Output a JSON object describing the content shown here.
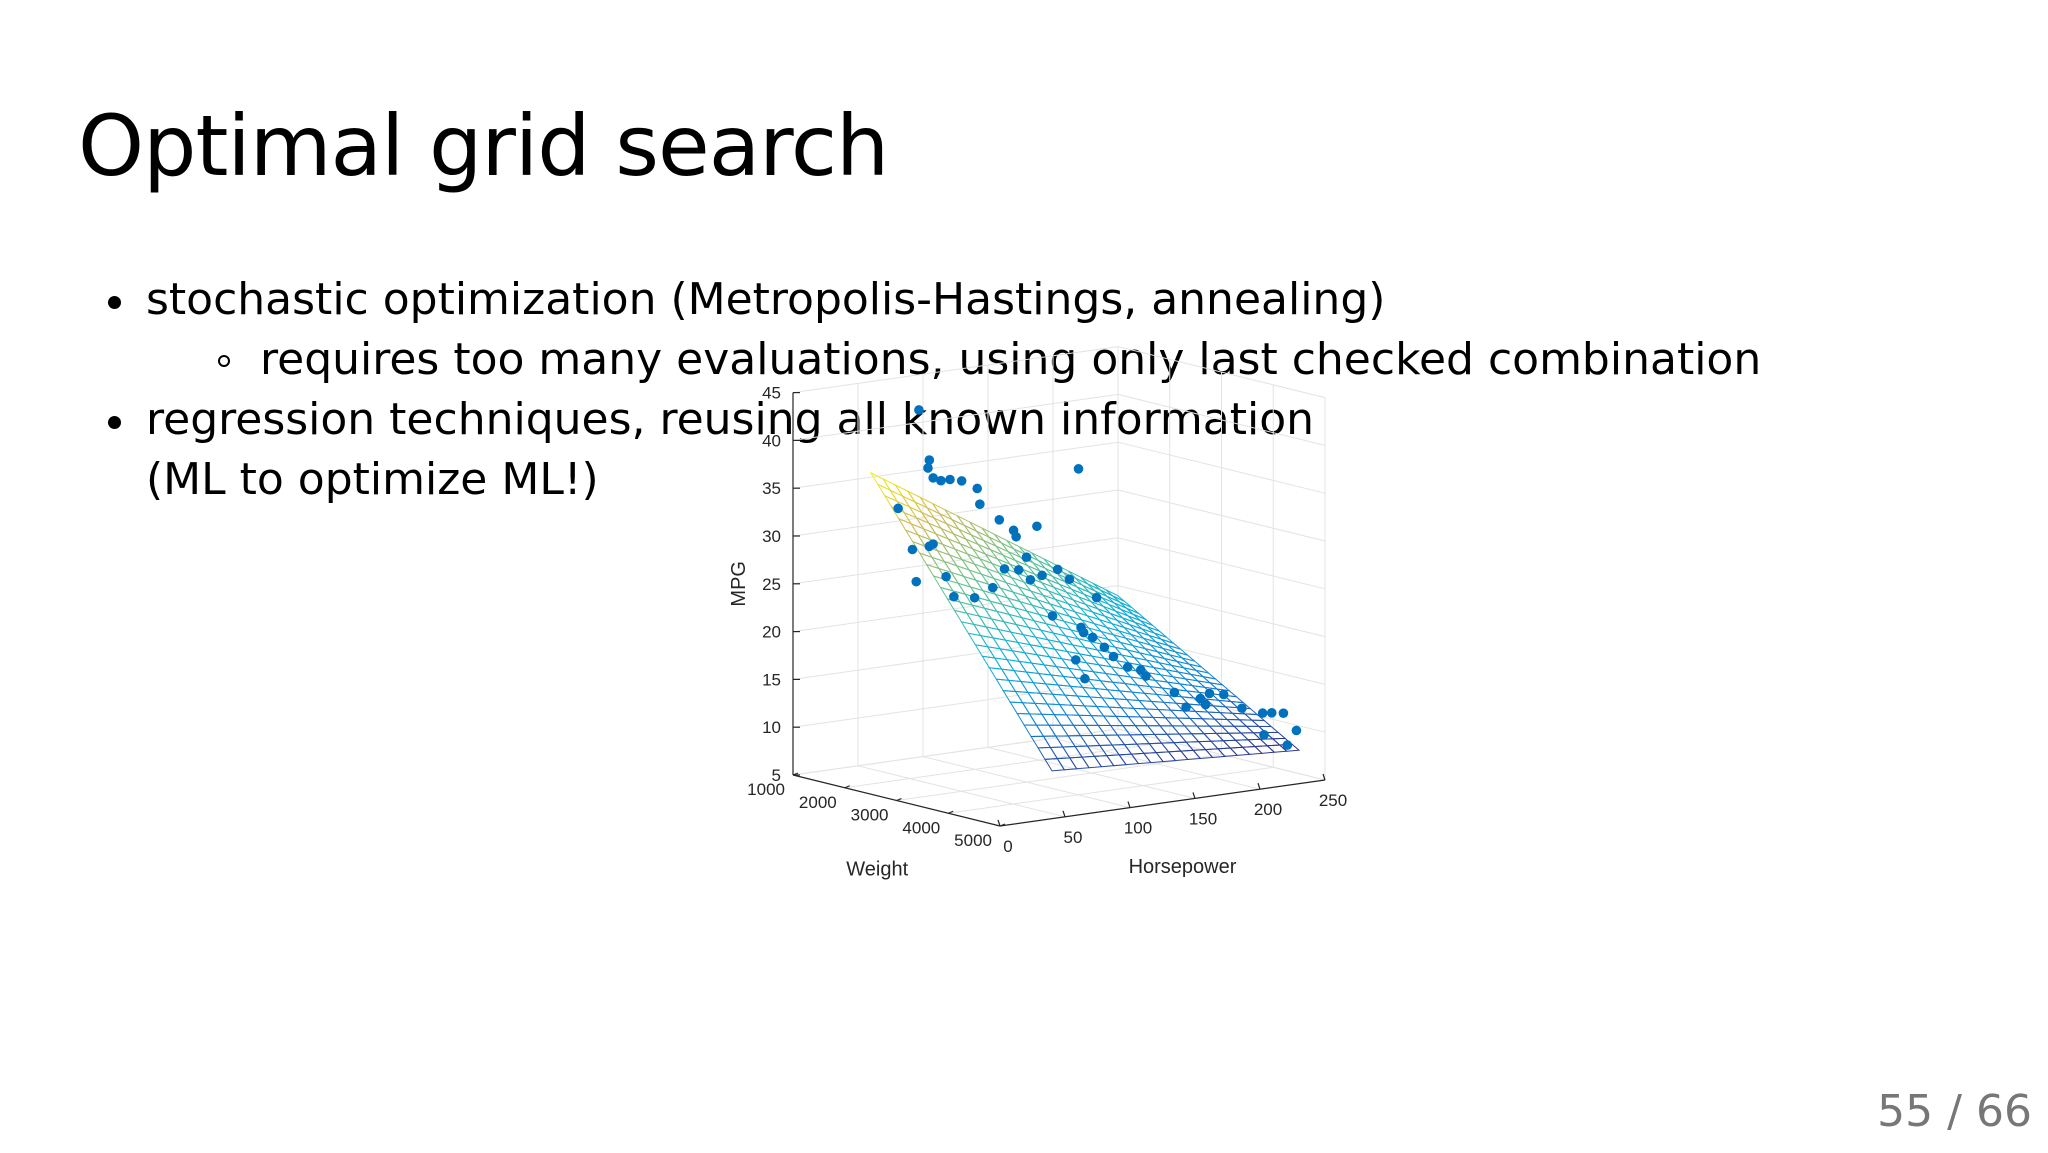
{
  "slide": {
    "title": "Optimal grid search",
    "bullets": [
      {
        "text": "stochastic optimization (Metropolis-Hastings, annealing)",
        "sub": [
          "requires too many evaluations, using only last checked combination"
        ]
      },
      {
        "lines": [
          "regression techniques, reusing all known information",
          "(ML to optimize ML!)"
        ]
      }
    ],
    "pager": {
      "current": "55",
      "separator": "/",
      "total": "66"
    }
  },
  "chart_data": {
    "type": "scatter",
    "subtype": "3d-scatter-with-regression-surface",
    "xlabel": "Weight",
    "ylabel": "Horsepower",
    "zlabel": "MPG",
    "xticks": [
      "1000",
      "2000",
      "3000",
      "4000",
      "5000"
    ],
    "yticks": [
      "0",
      "50",
      "100",
      "150",
      "200",
      "250"
    ],
    "zticks": [
      "5",
      "10",
      "15",
      "20",
      "25",
      "30",
      "35",
      "40",
      "45"
    ],
    "xlim": [
      1000,
      5000
    ],
    "ylim": [
      0,
      250
    ],
    "zlim": [
      5,
      45
    ],
    "grid": true,
    "surface": {
      "colormap": "parula",
      "corner_values": [
        {
          "weight": 1500,
          "horsepower": 40,
          "mpg": 36.5
        },
        {
          "weight": 5000,
          "horsepower": 40,
          "mpg": 10
        },
        {
          "weight": 1500,
          "horsepower": 230,
          "mpg": 20
        },
        {
          "weight": 5000,
          "horsepower": 230,
          "mpg": 8.5
        }
      ]
    },
    "points_color": "#0072bd",
    "points": [
      [
        1800,
        65,
        43
      ],
      [
        1750,
        75,
        37.5
      ],
      [
        1900,
        68,
        37
      ],
      [
        1950,
        70,
        36
      ],
      [
        2050,
        72,
        35.8
      ],
      [
        2150,
        75,
        36
      ],
      [
        2300,
        78,
        36
      ],
      [
        2550,
        80,
        35.5
      ],
      [
        2400,
        88,
        33.5
      ],
      [
        2600,
        95,
        32
      ],
      [
        2750,
        100,
        31
      ],
      [
        2850,
        98,
        30.5
      ],
      [
        2950,
        110,
        31.5
      ],
      [
        3000,
        140,
        37
      ],
      [
        1650,
        55,
        32.7
      ],
      [
        1800,
        60,
        28.5
      ],
      [
        2000,
        65,
        29
      ],
      [
        2150,
        62,
        29.5
      ],
      [
        2200,
        70,
        26
      ],
      [
        2000,
        55,
        25.5
      ],
      [
        2300,
        72,
        24
      ],
      [
        2500,
        80,
        24
      ],
      [
        2600,
        90,
        25
      ],
      [
        2700,
        95,
        27
      ],
      [
        2850,
        100,
        27
      ],
      [
        2950,
        105,
        26
      ],
      [
        3050,
        110,
        26.5
      ],
      [
        3100,
        120,
        27
      ],
      [
        3200,
        125,
        26
      ],
      [
        3350,
        140,
        24
      ],
      [
        3000,
        120,
        22
      ],
      [
        3300,
        130,
        21
      ],
      [
        3400,
        135,
        20
      ],
      [
        3500,
        140,
        19
      ],
      [
        3550,
        145,
        18
      ],
      [
        3700,
        150,
        17
      ],
      [
        3800,
        160,
        16
      ],
      [
        3500,
        125,
        16
      ],
      [
        3450,
        120,
        18
      ],
      [
        3700,
        160,
        16.5
      ],
      [
        4100,
        170,
        14.5
      ],
      [
        4200,
        175,
        13
      ],
      [
        4350,
        180,
        14
      ],
      [
        4400,
        185,
        14.5
      ],
      [
        4450,
        180,
        13.5
      ],
      [
        4550,
        190,
        14.5
      ],
      [
        4650,
        200,
        13
      ],
      [
        4800,
        210,
        12.5
      ],
      [
        4850,
        215,
        12.5
      ],
      [
        4950,
        220,
        12.5
      ],
      [
        4700,
        215,
        10
      ],
      [
        4900,
        225,
        9
      ],
      [
        4950,
        230,
        10.5
      ],
      [
        3100,
        140,
        20
      ],
      [
        2750,
        110,
        28
      ]
    ]
  }
}
